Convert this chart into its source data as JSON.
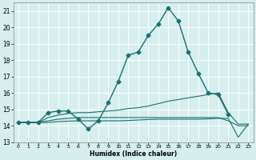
{
  "title": "",
  "xlabel": "Humidex (Indice chaleur)",
  "ylabel": "",
  "xlim": [
    -0.5,
    23.5
  ],
  "ylim": [
    13,
    21.5
  ],
  "yticks": [
    13,
    14,
    15,
    16,
    17,
    18,
    19,
    20,
    21
  ],
  "xticks": [
    0,
    1,
    2,
    3,
    4,
    5,
    6,
    7,
    8,
    9,
    10,
    11,
    12,
    13,
    14,
    15,
    16,
    17,
    18,
    19,
    20,
    21,
    22,
    23
  ],
  "background_color": "#d6eeee",
  "grid_color": "#ffffff",
  "line_color": "#1a7070",
  "lines": [
    {
      "x": [
        0,
        1,
        2,
        3,
        4,
        5,
        6,
        7,
        8,
        9,
        10,
        11,
        12,
        13,
        14,
        15,
        16,
        17,
        18,
        19,
        20,
        21
      ],
      "y": [
        14.2,
        14.2,
        14.2,
        14.8,
        14.9,
        14.9,
        14.4,
        13.8,
        14.3,
        15.4,
        16.7,
        18.3,
        18.5,
        19.5,
        20.2,
        21.2,
        20.4,
        18.5,
        17.2,
        16.0,
        15.9,
        14.7
      ],
      "marker": "D",
      "markersize": 2.5,
      "linewidth": 1.0
    },
    {
      "x": [
        0,
        1,
        2,
        3,
        4,
        5,
        6,
        7,
        8,
        9,
        10,
        11,
        12,
        13,
        14,
        15,
        16,
        17,
        18,
        19,
        20,
        21,
        22,
        23
      ],
      "y": [
        14.2,
        14.2,
        14.2,
        14.5,
        14.65,
        14.75,
        14.8,
        14.8,
        14.85,
        14.9,
        14.95,
        15.05,
        15.1,
        15.2,
        15.35,
        15.5,
        15.6,
        15.7,
        15.8,
        15.9,
        16.0,
        14.8,
        14.1,
        14.1
      ],
      "marker": null,
      "markersize": 0,
      "linewidth": 0.8
    },
    {
      "x": [
        0,
        1,
        2,
        3,
        4,
        5,
        6,
        7,
        8,
        9,
        10,
        11,
        12,
        13,
        14,
        15,
        16,
        17,
        18,
        19,
        20,
        21,
        22,
        23
      ],
      "y": [
        14.2,
        14.2,
        14.2,
        14.3,
        14.4,
        14.45,
        14.5,
        14.5,
        14.5,
        14.5,
        14.5,
        14.5,
        14.5,
        14.5,
        14.5,
        14.5,
        14.5,
        14.5,
        14.5,
        14.5,
        14.5,
        14.3,
        14.0,
        14.0
      ],
      "marker": null,
      "markersize": 0,
      "linewidth": 0.8
    },
    {
      "x": [
        0,
        1,
        2,
        3,
        4,
        5,
        6,
        7,
        8,
        9,
        10,
        11,
        12,
        13,
        14,
        15,
        16,
        17,
        18,
        19,
        20,
        21,
        22,
        23
      ],
      "y": [
        14.2,
        14.2,
        14.2,
        14.2,
        14.25,
        14.28,
        14.3,
        14.3,
        14.3,
        14.3,
        14.3,
        14.32,
        14.35,
        14.38,
        14.4,
        14.4,
        14.4,
        14.4,
        14.4,
        14.42,
        14.45,
        14.45,
        13.3,
        14.1
      ],
      "marker": null,
      "markersize": 0,
      "linewidth": 0.8
    }
  ]
}
